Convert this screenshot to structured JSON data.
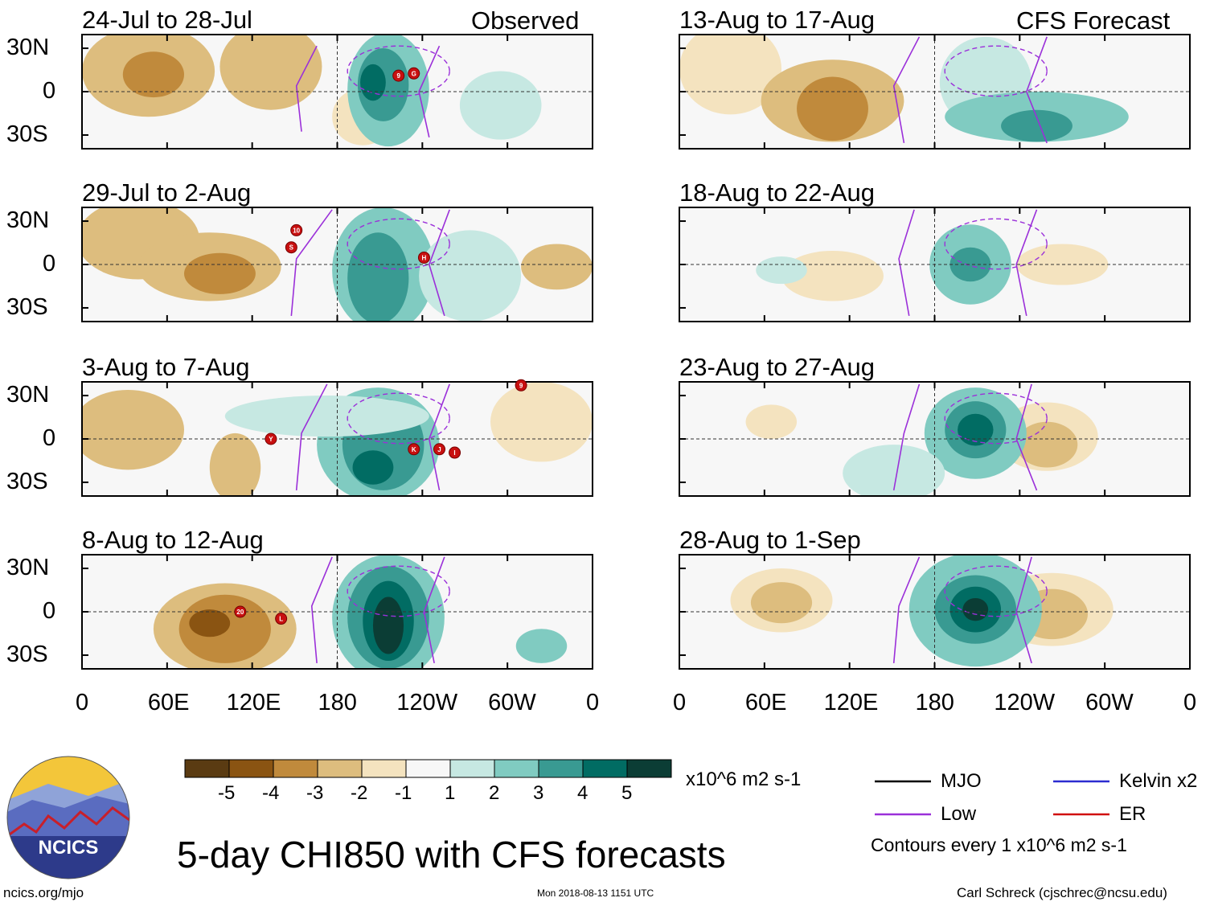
{
  "header": {
    "left_title": "Observed",
    "right_title": "CFS Forecast"
  },
  "chart_data": {
    "type": "heatmap",
    "title": "5-day CHI850 with CFS forecasts",
    "variable": "CHI850",
    "units": "x10^6 m2 s-1",
    "x_axis": {
      "label": "",
      "ticks": [
        "0",
        "60E",
        "120E",
        "180",
        "120W",
        "60W",
        "0"
      ]
    },
    "y_axis": {
      "label": "",
      "ticks": [
        "30N",
        "0",
        "30S"
      ]
    },
    "panels": [
      {
        "column": "Observed",
        "period": "24-Jul to 28-Jul",
        "tc_markers": [
          "9",
          "G"
        ]
      },
      {
        "column": "Observed",
        "period": "29-Jul to 2-Aug",
        "tc_markers": [
          "10",
          "S",
          "H"
        ]
      },
      {
        "column": "Observed",
        "period": "3-Aug to 7-Aug",
        "tc_markers": [
          "Y",
          "K",
          "J",
          "I",
          "9"
        ]
      },
      {
        "column": "Observed",
        "period": "8-Aug to 12-Aug",
        "tc_markers": [
          "20",
          "L"
        ]
      },
      {
        "column": "CFS Forecast",
        "period": "13-Aug to 17-Aug",
        "tc_markers": []
      },
      {
        "column": "CFS Forecast",
        "period": "18-Aug to 22-Aug",
        "tc_markers": []
      },
      {
        "column": "CFS Forecast",
        "period": "23-Aug to 27-Aug",
        "tc_markers": []
      },
      {
        "column": "CFS Forecast",
        "period": "28-Aug to 1-Sep",
        "tc_markers": []
      }
    ],
    "colorbar": {
      "labels": [
        "-5",
        "-4",
        "-3",
        "-2",
        "-1",
        "1",
        "2",
        "3",
        "4",
        "5"
      ],
      "colors": [
        "#5a3b12",
        "#8a5412",
        "#c08a3c",
        "#ddbd7e",
        "#f4e3bf",
        "#f7f7f7",
        "#c6e8e2",
        "#80cbc1",
        "#399a92",
        "#016c63",
        "#0b3d35"
      ]
    },
    "contour_legend": [
      {
        "label": "MJO",
        "color": "#000000"
      },
      {
        "label": "Low",
        "color": "#9b30d9"
      },
      {
        "label": "Kelvin x2",
        "color": "#2c2cd0"
      },
      {
        "label": "ER",
        "color": "#d01010"
      }
    ],
    "contour_note": "Contours every 1 x10^6 m2 s-1"
  },
  "footer": {
    "logo_text": "NCICS",
    "url": "ncics.org/mjo",
    "timestamp": "Mon 2018-08-13 1151 UTC",
    "credit": "Carl Schreck (cjschrec@ncsu.edu)"
  }
}
